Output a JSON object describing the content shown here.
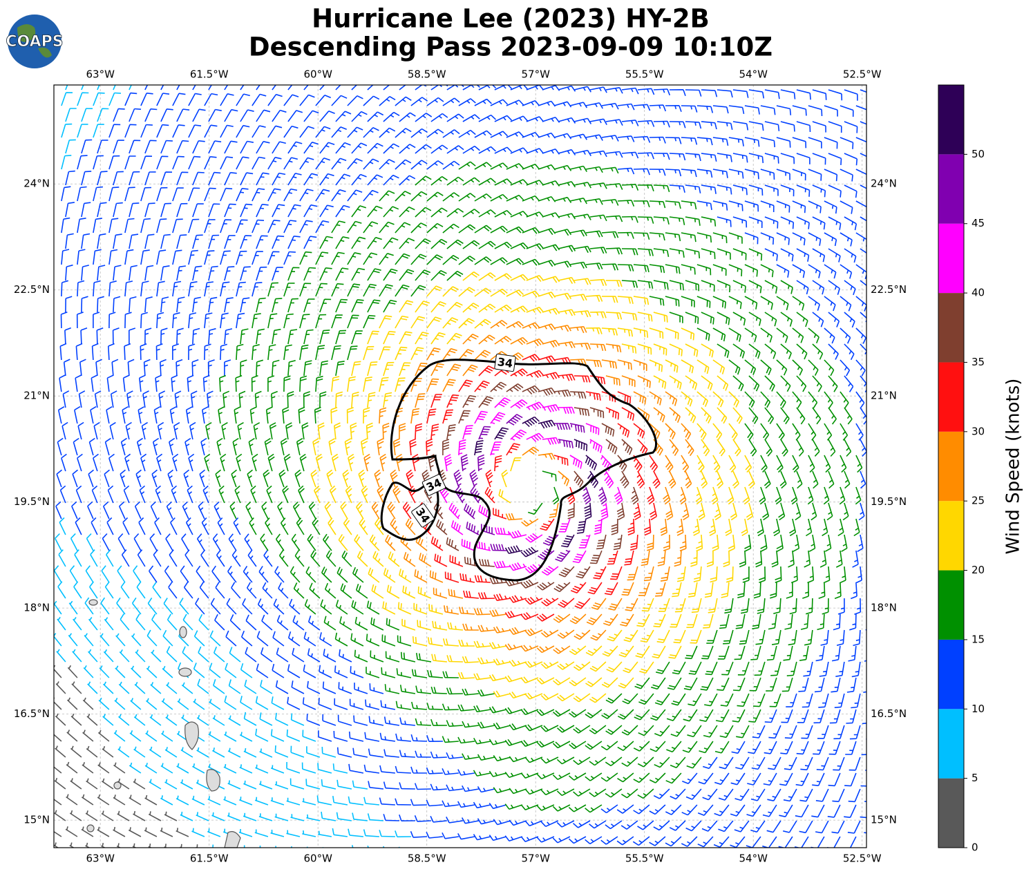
{
  "header": {
    "logo": "COAPS",
    "title": [
      "Hurricane Lee (2023) HY-2B",
      "Descending Pass 2023-09-09 10:10Z"
    ]
  },
  "map": {
    "xlim": [
      -63.64,
      -52.44
    ],
    "ylim": [
      14.61,
      25.4
    ],
    "xticks": [
      {
        "value": -63,
        "label": "63°W"
      },
      {
        "value": -61.5,
        "label": "61.5°W"
      },
      {
        "value": -60,
        "label": "60°W"
      },
      {
        "value": -58.5,
        "label": "58.5°W"
      },
      {
        "value": -57,
        "label": "57°W"
      },
      {
        "value": -55.5,
        "label": "55.5°W"
      },
      {
        "value": -54,
        "label": "54°W"
      },
      {
        "value": -52.5,
        "label": "52.5°W"
      }
    ],
    "yticks": [
      {
        "value": 15,
        "label": "15°N"
      },
      {
        "value": 16.5,
        "label": "16.5°N"
      },
      {
        "value": 18,
        "label": "18°N"
      },
      {
        "value": 19.5,
        "label": "19.5°N"
      },
      {
        "value": 21,
        "label": "21°N"
      },
      {
        "value": 22.5,
        "label": "22.5°N"
      },
      {
        "value": 24,
        "label": "24°N"
      }
    ],
    "contour_labels": [
      "34",
      "34",
      "34"
    ],
    "colorbar": {
      "label": "Wind Speed (knots)",
      "lim": [
        0,
        55
      ],
      "ticks": [
        0,
        5,
        10,
        15,
        20,
        25,
        30,
        35,
        40,
        45,
        50
      ],
      "colors": [
        "#595959",
        "#00bfff",
        "#0040ff",
        "#009000",
        "#ffd700",
        "#ff8c00",
        "#ff1010",
        "#7f3f2f",
        "#ff00ff",
        "#8000b0",
        "#2e0057"
      ]
    }
  }
}
